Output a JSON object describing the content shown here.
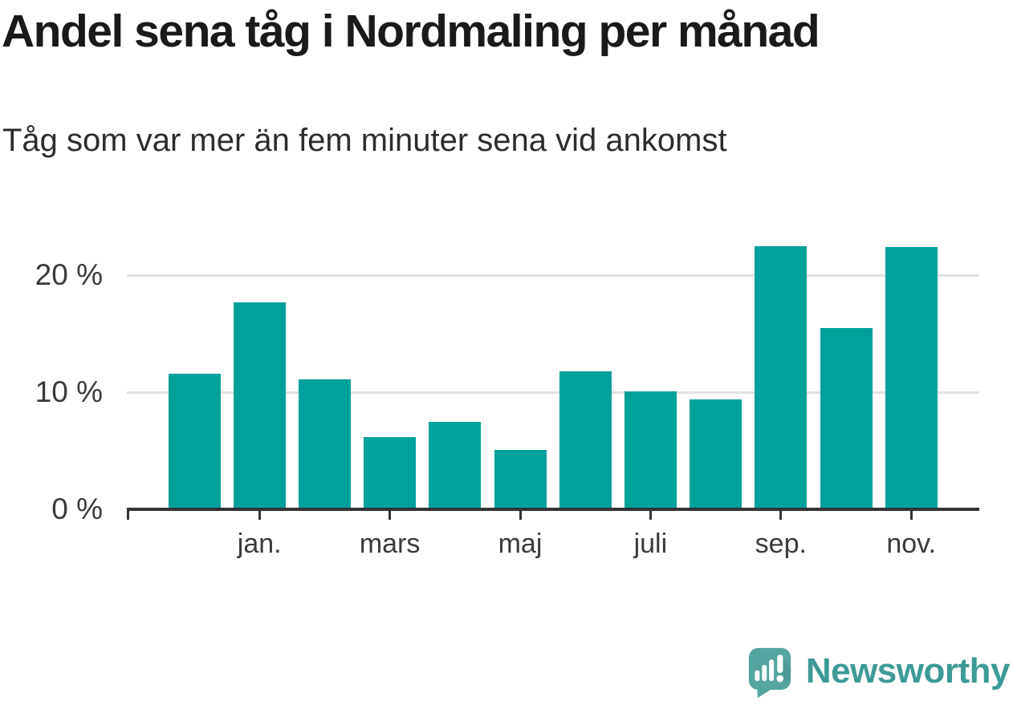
{
  "header": {
    "title": "Andel sena tåg i Nordmaling per månad",
    "subtitle": "Tåg som var mer än fem minuter sena vid ankomst"
  },
  "chart_data": {
    "type": "bar",
    "categories": [
      "",
      "jan.",
      "",
      "mars",
      "",
      "maj",
      "",
      "juli",
      "",
      "sep.",
      "",
      "nov."
    ],
    "values": [
      11.6,
      17.7,
      11.1,
      6.2,
      7.5,
      5.1,
      11.8,
      10.1,
      9.4,
      22.5,
      15.5,
      22.4
    ],
    "title": "Andel sena tåg i Nordmaling per månad",
    "subtitle": "Tåg som var mer än fem minuter sena vid ankomst",
    "xlabel": "",
    "ylabel": "",
    "y_ticks": [
      0,
      10,
      20
    ],
    "y_tick_labels": [
      "0 %",
      "10 %",
      "20 %"
    ],
    "ylim": [
      0,
      24
    ],
    "grid": true,
    "legend": "none",
    "colors": {
      "bar": "#00a19b",
      "grid": "#e2e2e2",
      "axis": "#333333",
      "tick_text": "#3a3a3a"
    }
  },
  "branding": {
    "logo_text": "Newsworthy",
    "logo_color": "#3d9a96",
    "icon_color": "#54a5a0",
    "icon_shade_color": "#468f8b"
  }
}
